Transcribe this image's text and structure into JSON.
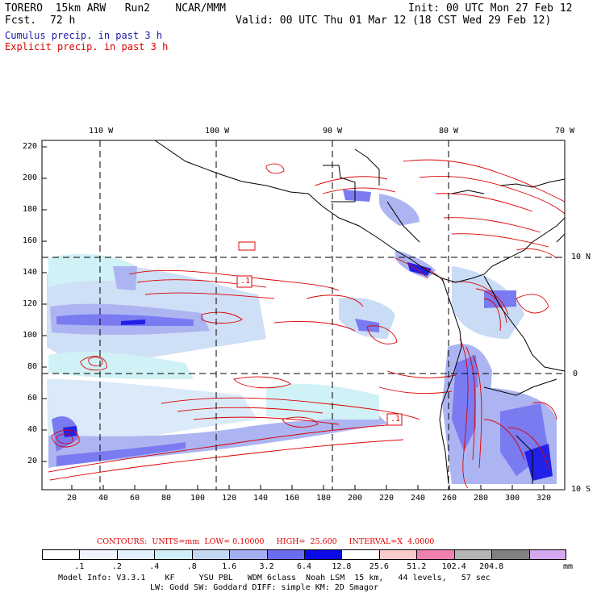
{
  "header": {
    "model": "TORERO  15km ARW   Run2    NCAR/MMM",
    "init": "Init: 00 UTC Mon 27 Feb 12",
    "fcst_label": "Fcst.",
    "fcst_value": "72 h",
    "valid": "Valid: 00 UTC Thu 01 Mar 12 (18 CST Wed 29 Feb 12)"
  },
  "legend": {
    "cumulus": "Cumulus precip. in past 3 h",
    "explicit": "Explicit precip. in past 3 h",
    "cumulus_color": "#1a1aa8",
    "explicit_color": "#dd0000"
  },
  "map": {
    "lon_labels": [
      "110 W",
      "100 W",
      "90 W",
      "80 W",
      "70 W"
    ],
    "lat_labels": [
      "10 N",
      "0",
      "10 S"
    ],
    "y_ticks": [
      "220",
      "200",
      "180",
      "160",
      "140",
      "120",
      "100",
      "80",
      "60",
      "40",
      "20"
    ],
    "x_ticks": [
      "20",
      "40",
      "60",
      "80",
      "100",
      "120",
      "140",
      "160",
      "180",
      "200",
      "220",
      "240",
      "260",
      "280",
      "300",
      "320"
    ],
    "box_labels": [
      ".1",
      ".1"
    ]
  },
  "contours": {
    "text": "CONTOURS:  UNITS=mm  LOW= 0.10000     HIGH=  25.600     INTERVAL=X  4.0000"
  },
  "colorbar": {
    "labels": [
      ".1",
      ".2",
      ".4",
      ".8",
      "1.6",
      "3.2",
      "6.4",
      "12.8",
      "25.6",
      "51.2",
      "102.4",
      "204.8"
    ],
    "unit": "mm",
    "colors": [
      "#ffffff",
      "#f0f4ff",
      "#e2f0ff",
      "#ccf0f5",
      "#c4d8f4",
      "#a4aef0",
      "#6c6cf0",
      "#0a0ae6",
      "#ffffff",
      "#f8cccc",
      "#f080b0",
      "#b4b4b4",
      "#808080",
      "#d4a8f0"
    ]
  },
  "footer": {
    "line1": "Model Info: V3.3.1    KF     YSU PBL   WDM 6class  Noah LSM  15 km,   44 levels,   57 sec",
    "line2": "LW: Godd SW: Goddard DIFF: simple KM: 2D Smagor"
  }
}
